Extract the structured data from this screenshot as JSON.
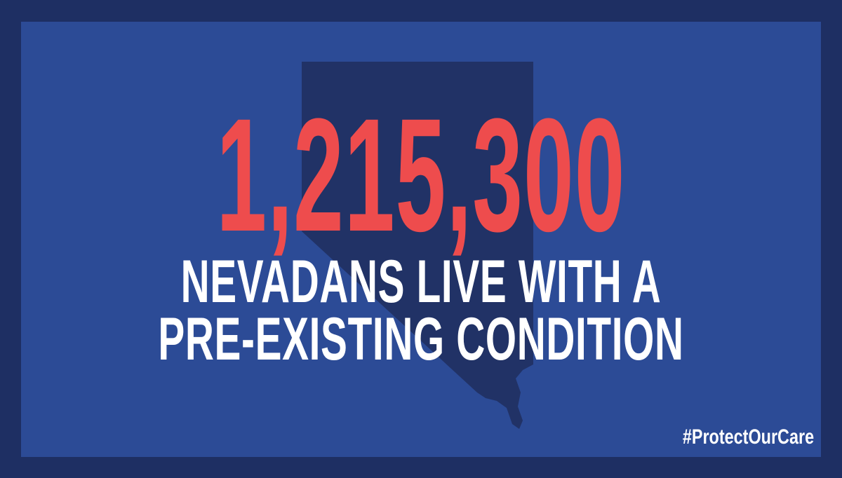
{
  "graphic": {
    "big_number": "1,215,300",
    "subtitle_line1": "NEVADANS LIVE WITH A",
    "subtitle_line2": "PRE-EXISTING CONDITION",
    "hashtag": "#ProtectOurCare"
  },
  "colors": {
    "frame": "#1e2f63",
    "panel": "#2c4b96",
    "state_silhouette": "#213266",
    "number": "#ee4c4d",
    "text": "#ffffff"
  },
  "icons": {
    "state_shape": "nevada-state-silhouette-icon"
  }
}
